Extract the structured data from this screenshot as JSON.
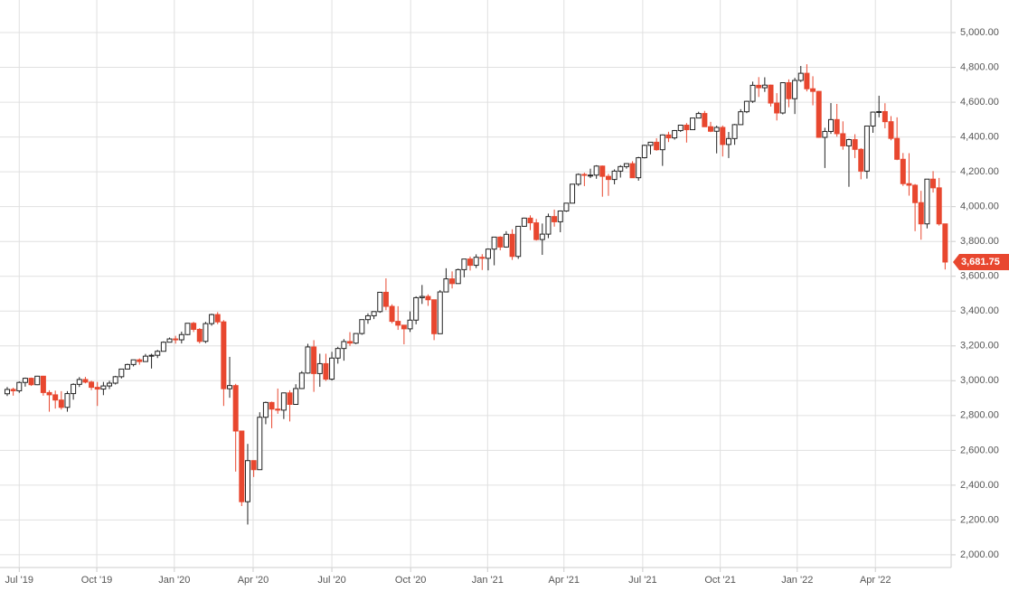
{
  "chart_data": {
    "type": "candlestick",
    "up_color": "#222222",
    "down_color": "#e8472f",
    "grid": true,
    "xlim": [
      -1.2,
      157
    ],
    "ylim": [
      1927,
      5187
    ],
    "xticks": [
      {
        "value": 2.0,
        "label": "Jul '19"
      },
      {
        "value": 14.9,
        "label": "Oct '19"
      },
      {
        "value": 27.8,
        "label": "Jan '20"
      },
      {
        "value": 40.9,
        "label": "Apr '20"
      },
      {
        "value": 54.0,
        "label": "Jul '20"
      },
      {
        "value": 67.1,
        "label": "Oct '20"
      },
      {
        "value": 79.9,
        "label": "Jan '21"
      },
      {
        "value": 92.6,
        "label": "Apr '21"
      },
      {
        "value": 105.7,
        "label": "Jul '21"
      },
      {
        "value": 118.6,
        "label": "Oct '21"
      },
      {
        "value": 131.4,
        "label": "Jan '22"
      },
      {
        "value": 144.4,
        "label": "Apr '22"
      }
    ],
    "yticks": [
      {
        "value": 2000,
        "label": "2,000.00"
      },
      {
        "value": 2200,
        "label": "2,200.00"
      },
      {
        "value": 2400,
        "label": "2,400.00"
      },
      {
        "value": 2600,
        "label": "2,600.00"
      },
      {
        "value": 2800,
        "label": "2,800.00"
      },
      {
        "value": 3000,
        "label": "3,000.00"
      },
      {
        "value": 3200,
        "label": "3,200.00"
      },
      {
        "value": 3400,
        "label": "3,400.00"
      },
      {
        "value": 3600,
        "label": "3,600.00"
      },
      {
        "value": 3800,
        "label": "3,800.00"
      },
      {
        "value": 4000,
        "label": "4,000.00"
      },
      {
        "value": 4200,
        "label": "4,200.00"
      },
      {
        "value": 4400,
        "label": "4,400.00"
      },
      {
        "value": 4600,
        "label": "4,600.00"
      },
      {
        "value": 4800,
        "label": "4,800.00"
      },
      {
        "value": 5000,
        "label": "5,000.00"
      }
    ],
    "last_price": {
      "value": 3681.75,
      "label": "3,681.75"
    },
    "open": [
      2925,
      2950,
      2942,
      2990,
      3014,
      2977,
      3026,
      2932,
      2919,
      2889,
      2847,
      2926,
      2979,
      3007,
      2992,
      2962,
      2952,
      2970,
      2986,
      3023,
      3067,
      3093,
      3120,
      3110,
      3141,
      3146,
      3169,
      3221,
      3240,
      3235,
      3265,
      3330,
      3295,
      3226,
      3328,
      3380,
      3338,
      2954,
      2972,
      2711,
      2305,
      2541,
      2489,
      2790,
      2875,
      2837,
      2831,
      2930,
      2864,
      2955,
      3044,
      3194,
      3041,
      3098,
      3009,
      3130,
      3185,
      3225,
      3216,
      3271,
      3351,
      3373,
      3397,
      3508,
      3427,
      3341,
      3319,
      3298,
      3348,
      3477,
      3484,
      3465,
      3270,
      3510,
      3585,
      3558,
      3638,
      3699,
      3663,
      3709,
      3703,
      3756,
      3825,
      3768,
      3841,
      3714,
      3887,
      3934,
      3907,
      3811,
      3842,
      3943,
      3913,
      3975,
      4020,
      4129,
      4185,
      4180,
      4181,
      4233,
      4174,
      4156,
      4204,
      4230,
      4247,
      4166,
      4281,
      4352,
      4370,
      4327,
      4412,
      4395,
      4437,
      4468,
      4442,
      4509,
      4535,
      4459,
      4433,
      4455,
      4357,
      4391,
      4471,
      4545,
      4605,
      4697,
      4683,
      4698,
      4595,
      4538,
      4712,
      4620,
      4725,
      4766,
      4677,
      4662,
      4398,
      4432,
      4500,
      4419,
      4349,
      4385,
      4329,
      4204,
      4463,
      4543,
      4546,
      4488,
      4392,
      4272,
      4132,
      4123,
      4023,
      3901,
      4158,
      4108,
      3901
    ],
    "high": [
      2964,
      2960,
      2996,
      3018,
      3018,
      3028,
      3028,
      2945,
      2943,
      2940,
      2940,
      2985,
      3021,
      3022,
      3000,
      2993,
      2993,
      3000,
      3028,
      3067,
      3098,
      3121,
      3128,
      3154,
      3155,
      3177,
      3226,
      3248,
      3258,
      3282,
      3330,
      3338,
      3302,
      3338,
      3385,
      3394,
      3348,
      3137,
      2982,
      2712,
      2637,
      2542,
      2819,
      2880,
      2880,
      2955,
      2932,
      2945,
      2980,
      3055,
      3212,
      3233,
      3155,
      3155,
      3166,
      3195,
      3239,
      3279,
      3273,
      3352,
      3387,
      3399,
      3509,
      3588,
      3439,
      3428,
      3321,
      3398,
      3485,
      3550,
      3496,
      3465,
      3521,
      3646,
      3628,
      3644,
      3699,
      3713,
      3726,
      3727,
      3760,
      3826,
      3830,
      3859,
      3870,
      3887,
      3937,
      3950,
      3929,
      3903,
      3960,
      3983,
      3978,
      4021,
      4129,
      4191,
      4195,
      4218,
      4238,
      4236,
      4188,
      4214,
      4238,
      4249,
      4261,
      4286,
      4356,
      4372,
      4393,
      4415,
      4430,
      4440,
      4468,
      4480,
      4510,
      4545,
      4550,
      4487,
      4465,
      4466,
      4429,
      4475,
      4560,
      4608,
      4718,
      4744,
      4743,
      4701,
      4652,
      4713,
      4731,
      4740,
      4808,
      4818,
      4749,
      4665,
      4453,
      4595,
      4590,
      4490,
      4390,
      4416,
      4336,
      4465,
      4546,
      4637,
      4594,
      4520,
      4513,
      4308,
      4307,
      4130,
      4091,
      4158,
      4204,
      4165,
      3901
    ],
    "low": [
      2912,
      2914,
      2930,
      2966,
      2970,
      2975,
      2914,
      2822,
      2840,
      2834,
      2822,
      2891,
      2964,
      2985,
      2946,
      2855,
      2917,
      2952,
      2978,
      3013,
      3065,
      3082,
      3092,
      3110,
      3070,
      3130,
      3168,
      3220,
      3213,
      3214,
      3262,
      3280,
      3214,
      3216,
      3316,
      3325,
      2855,
      2902,
      2478,
      2280,
      2174,
      2447,
      2489,
      2750,
      2727,
      2810,
      2780,
      2766,
      2866,
      2952,
      3040,
      2936,
      2965,
      2999,
      3001,
      3098,
      3115,
      3200,
      3210,
      3264,
      3327,
      3354,
      3390,
      3405,
      3330,
      3292,
      3209,
      3280,
      3324,
      3441,
      3430,
      3233,
      3269,
      3511,
      3530,
      3558,
      3594,
      3633,
      3647,
      3636,
      3634,
      3663,
      3749,
      3764,
      3694,
      3700,
      3885,
      3865,
      3805,
      3723,
      3819,
      3885,
      3853,
      3970,
      4019,
      4119,
      4118,
      4164,
      4160,
      4057,
      4062,
      4128,
      4167,
      4218,
      4165,
      4149,
      4277,
      4300,
      4321,
      4234,
      4371,
      4385,
      4429,
      4368,
      4440,
      4508,
      4459,
      4428,
      4306,
      4288,
      4279,
      4355,
      4470,
      4537,
      4596,
      4630,
      4659,
      4575,
      4495,
      4530,
      4571,
      4532,
      4716,
      4662,
      4582,
      4395,
      4222,
      4418,
      4402,
      4327,
      4114,
      4279,
      4157,
      4161,
      4424,
      4513,
      4450,
      4381,
      4267,
      4119,
      4063,
      3859,
      3810,
      3875,
      4081,
      3891,
      3639
    ],
    "close": [
      2950,
      2942,
      2990,
      3014,
      2977,
      3026,
      2932,
      2919,
      2889,
      2847,
      2926,
      2979,
      3007,
      2992,
      2962,
      2952,
      2970,
      2986,
      3023,
      3067,
      3093,
      3120,
      3110,
      3141,
      3146,
      3169,
      3221,
      3240,
      3235,
      3265,
      3330,
      3295,
      3226,
      3328,
      3380,
      3338,
      2954,
      2972,
      2711,
      2305,
      2541,
      2489,
      2790,
      2875,
      2837,
      2831,
      2930,
      2864,
      2955,
      3044,
      3194,
      3041,
      3098,
      3009,
      3130,
      3185,
      3225,
      3216,
      3271,
      3351,
      3373,
      3397,
      3508,
      3427,
      3341,
      3319,
      3298,
      3348,
      3477,
      3484,
      3465,
      3270,
      3510,
      3585,
      3558,
      3638,
      3699,
      3663,
      3709,
      3703,
      3756,
      3825,
      3768,
      3841,
      3714,
      3887,
      3934,
      3907,
      3811,
      3842,
      3943,
      3913,
      3975,
      4020,
      4129,
      4185,
      4180,
      4181,
      4233,
      4174,
      4156,
      4204,
      4230,
      4247,
      4166,
      4281,
      4352,
      4370,
      4327,
      4412,
      4395,
      4437,
      4468,
      4442,
      4509,
      4535,
      4459,
      4433,
      4455,
      4357,
      4391,
      4471,
      4545,
      4605,
      4697,
      4683,
      4698,
      4595,
      4538,
      4712,
      4620,
      4725,
      4766,
      4677,
      4662,
      4398,
      4432,
      4500,
      4419,
      4349,
      4385,
      4329,
      4204,
      4463,
      4543,
      4546,
      4488,
      4392,
      4272,
      4132,
      4123,
      4023,
      3901,
      4158,
      4108,
      3901,
      3681.75
    ]
  }
}
